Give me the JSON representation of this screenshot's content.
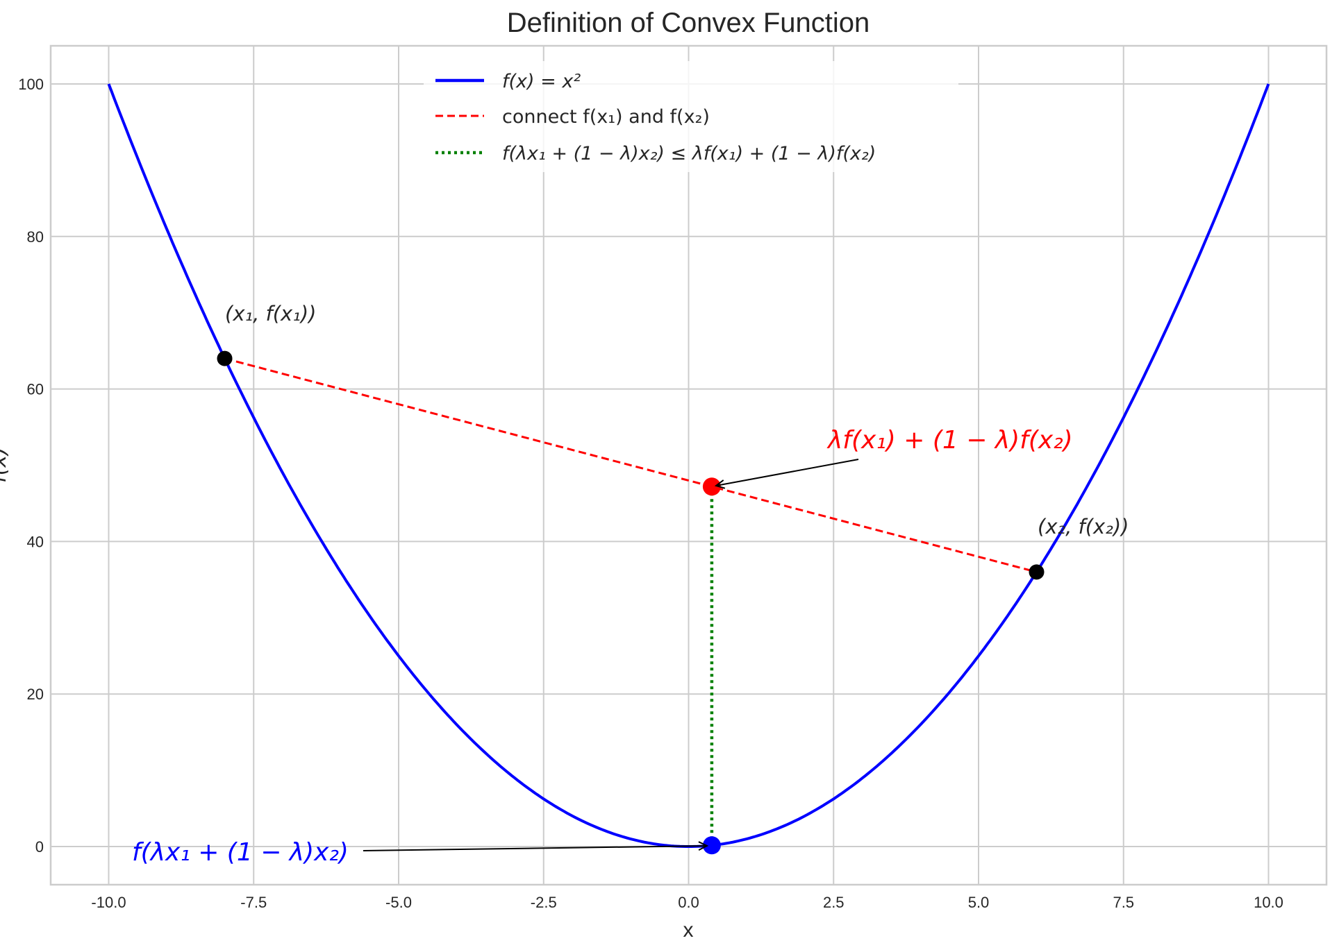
{
  "chart_data": {
    "type": "line",
    "title": "Definition of Convex Function",
    "xlabel": "x",
    "ylabel": "f(x)",
    "xlim": [
      -11,
      11
    ],
    "ylim": [
      -5,
      105
    ],
    "grid": true,
    "xticks": [
      -10,
      -7.5,
      -5,
      -2.5,
      0,
      2.5,
      5,
      7.5,
      10
    ],
    "xtick_labels": [
      "-10.0",
      "-7.5",
      "-5.0",
      "-2.5",
      "0.0",
      "2.5",
      "5.0",
      "7.5",
      "10.0"
    ],
    "yticks": [
      0,
      20,
      40,
      60,
      80,
      100
    ],
    "ytick_labels": [
      "0",
      "20",
      "40",
      "60",
      "80",
      "100"
    ],
    "legend_placement": "upper-center",
    "curve": {
      "name": "f(x) = x²",
      "function": "x^2",
      "x_range": [
        -10,
        10
      ],
      "color": "#0000ff",
      "style": "solid"
    },
    "chord": {
      "name": "connect f(x₁) and f(x₂)",
      "from": [
        -8,
        64
      ],
      "to": [
        6,
        36
      ],
      "color": "#ff0000",
      "style": "dashed"
    },
    "vertical": {
      "name": "f(λx₁ + (1 − λ)x₂) ≤ λf(x₁) + (1 − λ)f(x₂)",
      "from": [
        0.4,
        0.16
      ],
      "to": [
        0.4,
        47.2
      ],
      "color": "#008000",
      "style": "dotted"
    },
    "points": [
      {
        "x": -8,
        "y": 64,
        "color": "#000000",
        "label": "(x₁, f(x₁))"
      },
      {
        "x": 6,
        "y": 36,
        "color": "#000000",
        "label": "(x₂, f(x₂))"
      },
      {
        "x": 0.4,
        "y": 47.2,
        "color": "#ff0000"
      },
      {
        "x": 0.4,
        "y": 0.16,
        "color": "#0000ff"
      }
    ],
    "annotations": [
      {
        "text": "λf(x₁) + (1 − λ)f(x₂)",
        "color": "#ff0000",
        "xy": [
          0.4,
          47.2
        ]
      },
      {
        "text": "f(λx₁ + (1 − λ)x₂)",
        "color": "#0000ff",
        "xy": [
          0.4,
          0.16
        ]
      }
    ]
  }
}
